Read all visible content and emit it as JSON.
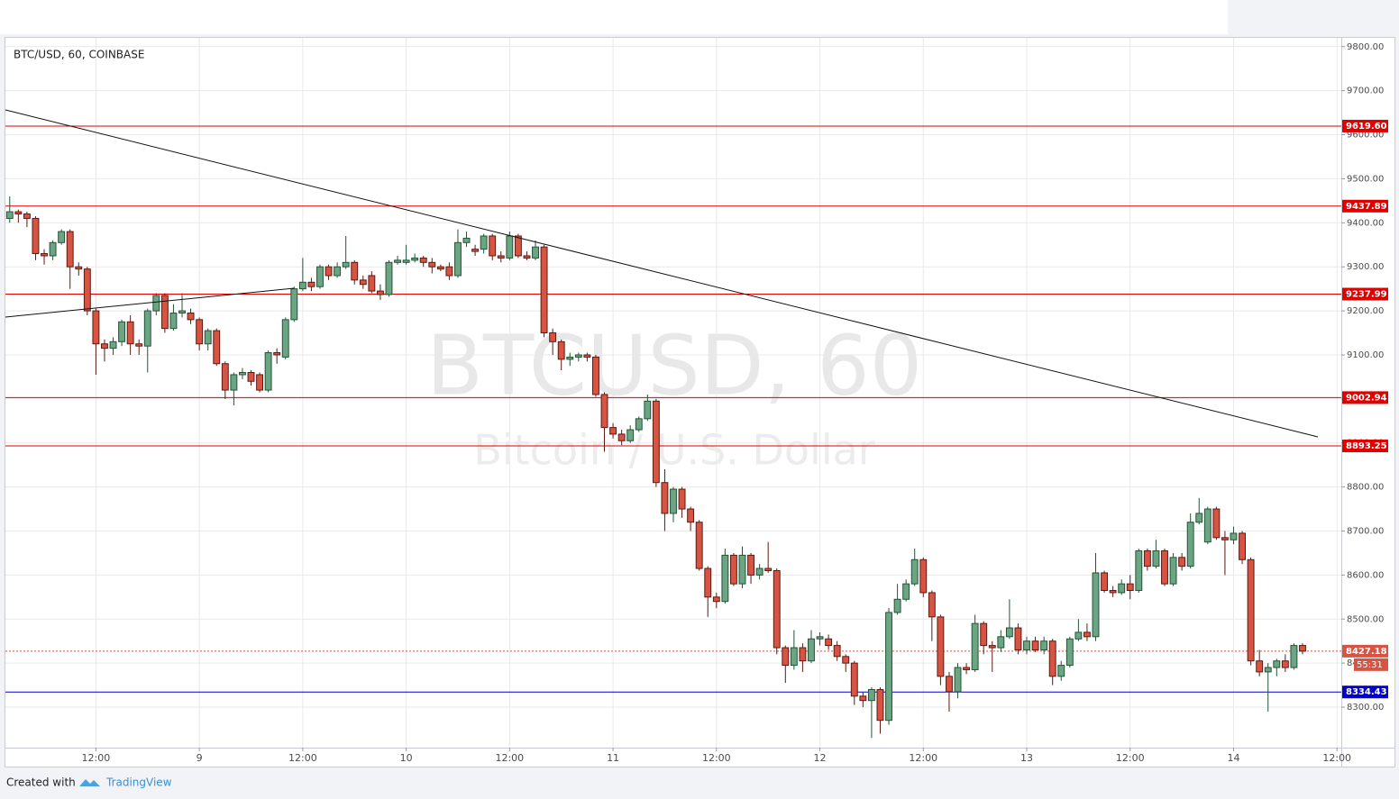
{
  "chart_data": {
    "type": "candlestick",
    "title": "BTC/USD, 60, COINBASE",
    "watermark": "BTCUSD, 60",
    "watermark_subtitle": "Bitcoin / U.S. Dollar",
    "up_color": "#6ba583",
    "down_color": "#d75442",
    "grid": true,
    "open": [
      9410,
      9425,
      9420,
      9410,
      9330,
      9325,
      9355,
      9380,
      9300,
      9295,
      9200,
      9125,
      9115,
      9130,
      9175,
      9125,
      9120,
      9200,
      9235,
      9160,
      9195,
      9195,
      9180,
      9125,
      9155,
      9080,
      9020,
      9055,
      9060,
      9055,
      9020,
      9105,
      9095,
      9180,
      9250,
      9265,
      9255,
      9300,
      9280,
      9300,
      9310,
      9270,
      9280,
      9245,
      9237,
      9310,
      9310,
      9315,
      9320,
      9310,
      9300,
      9300,
      9280,
      9355,
      9340,
      9340,
      9370,
      9325,
      9320,
      9370,
      9325,
      9320,
      9345,
      9150,
      9130,
      9090,
      9095,
      9100,
      9095,
      9010,
      8935,
      8920,
      8905,
      8930,
      8955,
      8995,
      8810,
      8740,
      8795,
      8750,
      8720,
      8615,
      8550,
      8540,
      8645,
      8580,
      8645,
      8600,
      8615,
      8610,
      8435,
      8395,
      8435,
      8405,
      8455,
      8455,
      8440,
      8415,
      8400,
      8325,
      8315,
      8340,
      8270,
      8515,
      8545,
      8580,
      8635,
      8560,
      8505,
      8370,
      8335,
      8390,
      8385,
      8490,
      8440,
      8435,
      8460,
      8480,
      8430,
      8450,
      8430,
      8450,
      8370,
      8395,
      8455,
      8470,
      8460,
      8605,
      8565,
      8560,
      8580,
      8565,
      8655,
      8620,
      8655,
      8580,
      8640,
      8620,
      8720,
      8675,
      8750,
      8685,
      8680,
      8695,
      8635,
      8405,
      8380,
      8390,
      8405,
      8390,
      8440
    ],
    "high": [
      9460,
      9430,
      9425,
      9415,
      9340,
      9360,
      9385,
      9385,
      9310,
      9300,
      9205,
      9135,
      9140,
      9180,
      9190,
      9135,
      9205,
      9240,
      9240,
      9215,
      9240,
      9205,
      9185,
      9160,
      9160,
      9085,
      9060,
      9070,
      9065,
      9060,
      9110,
      9115,
      9185,
      9255,
      9320,
      9275,
      9305,
      9305,
      9310,
      9370,
      9315,
      9280,
      9290,
      9260,
      9315,
      9325,
      9350,
      9330,
      9325,
      9320,
      9305,
      9310,
      9385,
      9380,
      9350,
      9375,
      9375,
      9335,
      9380,
      9375,
      9335,
      9360,
      9350,
      9160,
      9135,
      9105,
      9105,
      9105,
      9100,
      9015,
      8945,
      8930,
      8940,
      8960,
      9010,
      9000,
      8840,
      8800,
      8800,
      8755,
      8725,
      8620,
      8560,
      8660,
      8650,
      8665,
      8650,
      8625,
      8675,
      8615,
      8440,
      8475,
      8445,
      8475,
      8470,
      8465,
      8450,
      8420,
      8405,
      8335,
      8345,
      8345,
      8525,
      8580,
      8590,
      8660,
      8640,
      8565,
      8510,
      8380,
      8400,
      8400,
      8510,
      8495,
      8450,
      8475,
      8545,
      8490,
      8460,
      8460,
      8460,
      8455,
      8405,
      8460,
      8500,
      8490,
      8650,
      8610,
      8575,
      8590,
      8600,
      8660,
      8660,
      8680,
      8660,
      8650,
      8650,
      8740,
      8775,
      8755,
      8755,
      8700,
      8710,
      8700,
      8640,
      8430,
      8400,
      8410,
      8420,
      8445,
      8445
    ],
    "low": [
      9400,
      9400,
      9390,
      9315,
      9305,
      9315,
      9350,
      9250,
      9280,
      9190,
      9055,
      9085,
      9100,
      9120,
      9100,
      9100,
      9060,
      9190,
      9150,
      9155,
      9185,
      9170,
      9110,
      9110,
      9075,
      9000,
      8985,
      9045,
      9030,
      9015,
      9015,
      9080,
      9090,
      9175,
      9245,
      9245,
      9250,
      9270,
      9275,
      9295,
      9260,
      9250,
      9240,
      9225,
      9232,
      9305,
      9305,
      9310,
      9300,
      9285,
      9290,
      9270,
      9275,
      9345,
      9325,
      9330,
      9315,
      9310,
      9315,
      9320,
      9315,
      9315,
      9140,
      9100,
      9065,
      9075,
      9085,
      9085,
      9005,
      8880,
      8910,
      8895,
      8900,
      8925,
      8950,
      8800,
      8700,
      8720,
      8730,
      8700,
      8610,
      8505,
      8525,
      8535,
      8575,
      8570,
      8580,
      8590,
      8605,
      8420,
      8355,
      8385,
      8380,
      8400,
      8440,
      8430,
      8405,
      8380,
      8305,
      8300,
      8230,
      8240,
      8260,
      8510,
      8540,
      8575,
      8550,
      8450,
      8350,
      8290,
      8320,
      8375,
      8380,
      8420,
      8380,
      8425,
      8455,
      8420,
      8420,
      8425,
      8420,
      8350,
      8360,
      8390,
      8450,
      8450,
      8450,
      8560,
      8550,
      8555,
      8545,
      8560,
      8610,
      8615,
      8575,
      8575,
      8610,
      8615,
      8715,
      8670,
      8680,
      8600,
      8670,
      8625,
      8395,
      8370,
      8290,
      8370,
      8380,
      8385,
      8420
    ],
    "close": [
      9425,
      9420,
      9410,
      9330,
      9325,
      9355,
      9380,
      9300,
      9295,
      9200,
      9125,
      9115,
      9130,
      9175,
      9125,
      9120,
      9200,
      9235,
      9160,
      9195,
      9200,
      9180,
      9125,
      9155,
      9080,
      9020,
      9055,
      9060,
      9040,
      9020,
      9105,
      9100,
      9180,
      9250,
      9265,
      9255,
      9300,
      9280,
      9300,
      9310,
      9270,
      9260,
      9245,
      9237,
      9310,
      9315,
      9315,
      9320,
      9310,
      9300,
      9295,
      9280,
      9355,
      9365,
      9335,
      9370,
      9325,
      9320,
      9370,
      9325,
      9320,
      9345,
      9150,
      9130,
      9090,
      9095,
      9100,
      9095,
      9010,
      8935,
      8920,
      8905,
      8930,
      8955,
      8995,
      8810,
      8740,
      8795,
      8750,
      8720,
      8615,
      8550,
      8540,
      8645,
      8580,
      8645,
      8600,
      8615,
      8610,
      8435,
      8395,
      8435,
      8405,
      8455,
      8460,
      8440,
      8415,
      8400,
      8325,
      8315,
      8340,
      8270,
      8515,
      8545,
      8580,
      8635,
      8560,
      8505,
      8370,
      8335,
      8390,
      8385,
      8490,
      8440,
      8435,
      8460,
      8480,
      8430,
      8450,
      8430,
      8450,
      8370,
      8395,
      8455,
      8470,
      8460,
      8605,
      8565,
      8560,
      8580,
      8565,
      8655,
      8620,
      8655,
      8580,
      8640,
      8620,
      8720,
      8740,
      8750,
      8685,
      8680,
      8695,
      8635,
      8405,
      8380,
      8390,
      8405,
      8390,
      8440,
      8427.18
    ],
    "xlim": [
      -0.5,
      154.5
    ],
    "xticks": [
      {
        "value": 10,
        "label": "12:00"
      },
      {
        "value": 22,
        "label": "9"
      },
      {
        "value": 34,
        "label": "12:00"
      },
      {
        "value": 46,
        "label": "10"
      },
      {
        "value": 58,
        "label": "12:00"
      },
      {
        "value": 70,
        "label": "11"
      },
      {
        "value": 82,
        "label": "12:00"
      },
      {
        "value": 94,
        "label": "12"
      },
      {
        "value": 106,
        "label": "12:00"
      },
      {
        "value": 118,
        "label": "13"
      },
      {
        "value": 130,
        "label": "12:00"
      },
      {
        "value": 142,
        "label": "14"
      },
      {
        "value": 154,
        "label": "12:00"
      }
    ],
    "ylim": [
      8208,
      9820
    ],
    "yticks": [
      {
        "value": 8300,
        "label": "8300.00"
      },
      {
        "value": 8400,
        "label": "8400.00"
      },
      {
        "value": 8500,
        "label": "8500.00"
      },
      {
        "value": 8600,
        "label": "8600.00"
      },
      {
        "value": 8700,
        "label": "8700.00"
      },
      {
        "value": 8800,
        "label": "8800.00"
      },
      {
        "value": 8900,
        "label": "8900.00"
      },
      {
        "value": 9000,
        "label": "9000.00"
      },
      {
        "value": 9100,
        "label": "9100.00"
      },
      {
        "value": 9200,
        "label": "9200.00"
      },
      {
        "value": 9300,
        "label": "9300.00"
      },
      {
        "value": 9400,
        "label": "9400.00"
      },
      {
        "value": 9500,
        "label": "9500.00"
      },
      {
        "value": 9600,
        "label": "9600.00"
      },
      {
        "value": 9700,
        "label": "9700.00"
      },
      {
        "value": 9800,
        "label": "9800.00"
      }
    ],
    "levels": [
      {
        "value": 9619.6,
        "label": "9619.60",
        "color": "#e00000"
      },
      {
        "value": 9437.89,
        "label": "9437.89",
        "color": "#e00000"
      },
      {
        "value": 9237.99,
        "label": "9237.99",
        "color": "#e00000"
      },
      {
        "value": 9002.94,
        "label": "9002.94",
        "color": "#e00000"
      },
      {
        "value": 8893.25,
        "label": "8893.25",
        "color": "#e00000"
      },
      {
        "value": 8334.43,
        "label": "8334.43",
        "color": "#0000c8"
      }
    ],
    "last_price": {
      "value": 8427.18,
      "label": "8427.18",
      "countdown": "55:31",
      "color": "#d75442"
    }
  },
  "footer": {
    "created_with": "Created with",
    "brand": "TradingView"
  }
}
